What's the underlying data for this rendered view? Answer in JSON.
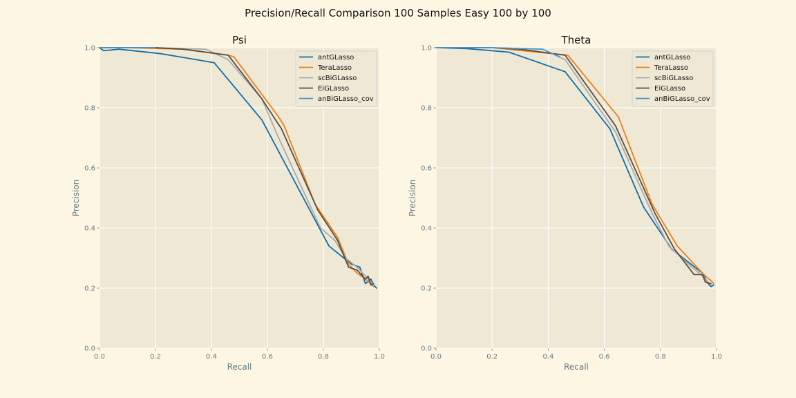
{
  "figure": {
    "title": "Precision/Recall Comparison 100 Samples Easy 100 by 100"
  },
  "colors": {
    "figure_bg": "#fdf6e3",
    "axes_bg": "#efe8d5",
    "grid": "#ffffff",
    "tick_text": "#657b83",
    "antGLasso": "#0b6fad",
    "TeraLasso": "#f07f1a",
    "scBiGLasso": "#a9a9a9",
    "EiGLasso": "#555044",
    "anBiGLasso_cov": "#4f97d0"
  },
  "chart_data": [
    {
      "type": "line",
      "title": "Psi",
      "xlabel": "Recall",
      "ylabel": "Precision",
      "xlim": [
        0,
        1
      ],
      "ylim": [
        0,
        1
      ],
      "xticks": [
        "0.0",
        "0.2",
        "0.4",
        "0.6",
        "0.8",
        "1.0"
      ],
      "yticks": [
        "0.0",
        "0.2",
        "0.4",
        "0.6",
        "0.8",
        "1.0"
      ],
      "grid": true,
      "legend": "top-right",
      "series": [
        {
          "name": "antGLasso",
          "color": "#0b6fad",
          "x": [
            0,
            0.015,
            0.07,
            0.22,
            0.41,
            0.58,
            0.82,
            0.9,
            0.93,
            0.95,
            0.97,
            0.98,
            0.99
          ],
          "y": [
            1.0,
            0.99,
            0.995,
            0.98,
            0.95,
            0.76,
            0.34,
            0.28,
            0.27,
            0.215,
            0.23,
            0.21,
            0.2
          ]
        },
        {
          "name": "TeraLasso",
          "color": "#f07f1a",
          "x": [
            0,
            0.1,
            0.3,
            0.46,
            0.48,
            0.64,
            0.66,
            0.77,
            0.85,
            0.89,
            0.92,
            0.95,
            0.98
          ],
          "y": [
            1.0,
            1.0,
            0.995,
            0.975,
            0.97,
            0.77,
            0.74,
            0.48,
            0.37,
            0.28,
            0.25,
            0.23,
            0.205
          ]
        },
        {
          "name": "scBiGLasso",
          "color": "#a9a9a9",
          "x": [
            0,
            0.2,
            0.38,
            0.46,
            0.58,
            0.64,
            0.79,
            0.84,
            0.88,
            0.92,
            0.96,
            0.98
          ],
          "y": [
            1.0,
            1.0,
            0.995,
            0.96,
            0.83,
            0.7,
            0.4,
            0.36,
            0.3,
            0.27,
            0.23,
            0.21
          ]
        },
        {
          "name": "EiGLasso",
          "color": "#555044",
          "x": [
            0,
            0.2,
            0.3,
            0.46,
            0.58,
            0.65,
            0.78,
            0.85,
            0.89,
            0.92,
            0.95,
            0.96,
            0.97,
            0.98
          ],
          "y": [
            1.0,
            1.0,
            0.995,
            0.975,
            0.83,
            0.73,
            0.46,
            0.36,
            0.27,
            0.26,
            0.23,
            0.24,
            0.21,
            0.215
          ]
        },
        {
          "name": "anBiGLasso_cov",
          "color": "#4f97d0",
          "x": [
            0,
            0.2
          ],
          "y": [
            1.0,
            1.0
          ]
        }
      ]
    },
    {
      "type": "line",
      "title": "Theta",
      "xlabel": "Recall",
      "ylabel": "Precision",
      "xlim": [
        0,
        1
      ],
      "ylim": [
        0,
        1
      ],
      "xticks": [
        "0.0",
        "0.2",
        "0.4",
        "0.6",
        "0.8",
        "1.0"
      ],
      "yticks": [
        "0.0",
        "0.2",
        "0.4",
        "0.6",
        "0.8",
        "1.0"
      ],
      "grid": true,
      "legend": "top-right",
      "series": [
        {
          "name": "antGLasso",
          "color": "#0b6fad",
          "x": [
            0,
            0.11,
            0.26,
            0.46,
            0.62,
            0.74,
            0.84,
            0.95,
            0.97,
            0.98,
            0.99
          ],
          "y": [
            1.0,
            0.997,
            0.985,
            0.92,
            0.73,
            0.47,
            0.33,
            0.25,
            0.215,
            0.205,
            0.21
          ]
        },
        {
          "name": "TeraLasso",
          "color": "#f07f1a",
          "x": [
            0,
            0.2,
            0.47,
            0.65,
            0.77,
            0.86,
            0.92,
            0.96,
            0.98,
            0.99
          ],
          "y": [
            1.0,
            1.0,
            0.975,
            0.77,
            0.48,
            0.34,
            0.28,
            0.24,
            0.225,
            0.215
          ]
        },
        {
          "name": "scBiGLasso",
          "color": "#a9a9a9",
          "x": [
            0,
            0.2,
            0.38,
            0.46,
            0.64,
            0.77,
            0.83,
            0.9,
            0.95,
            0.98
          ],
          "y": [
            1.0,
            1.0,
            0.995,
            0.96,
            0.72,
            0.45,
            0.34,
            0.28,
            0.24,
            0.21
          ]
        },
        {
          "name": "EiGLasso",
          "color": "#555044",
          "x": [
            0,
            0.2,
            0.3,
            0.46,
            0.64,
            0.78,
            0.85,
            0.92,
            0.95,
            0.96,
            0.98
          ],
          "y": [
            1.0,
            1.0,
            0.995,
            0.975,
            0.74,
            0.45,
            0.33,
            0.245,
            0.245,
            0.22,
            0.215
          ]
        },
        {
          "name": "anBiGLasso_cov",
          "color": "#4f97d0",
          "x": [
            0,
            0.2,
            0.38,
            0.44
          ],
          "y": [
            1.0,
            1.0,
            0.995,
            0.97
          ]
        }
      ]
    }
  ]
}
